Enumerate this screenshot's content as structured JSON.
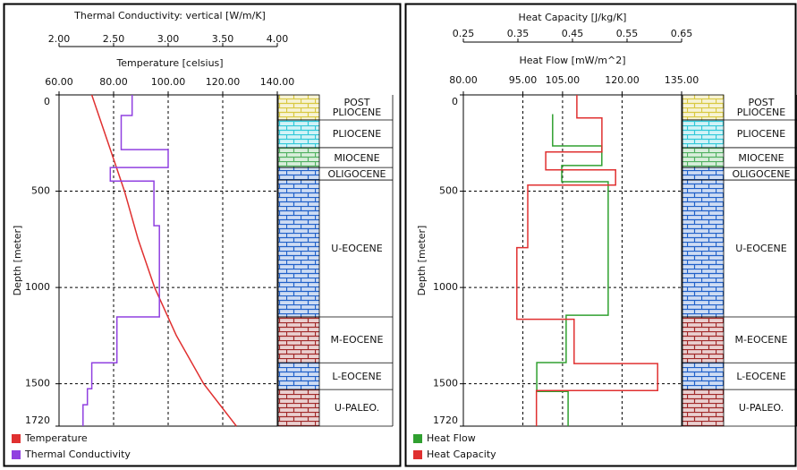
{
  "chart_data": [
    {
      "type": "line",
      "x2label": "Thermal Conductivity: vertical [W/m/K]",
      "xlabel": "Temperature [celsius]",
      "ylabel": "Depth [meter]",
      "x2lim": [
        2,
        4
      ],
      "x2ticks": [
        {
          "value": 2,
          "label": "2.00"
        },
        {
          "value": 2.5,
          "label": "2.50"
        },
        {
          "value": 3,
          "label": "3.00"
        },
        {
          "value": 3.5,
          "label": "3.50"
        },
        {
          "value": 4,
          "label": "4.00"
        }
      ],
      "xlim": [
        60,
        140
      ],
      "xticks": [
        {
          "value": 60,
          "label": "60.00"
        },
        {
          "value": 80,
          "label": "80.00"
        },
        {
          "value": 100,
          "label": "100.00"
        },
        {
          "value": 120,
          "label": "120.00"
        },
        {
          "value": 140,
          "label": "140.00"
        }
      ],
      "ylim": [
        0,
        1720
      ],
      "yticks": [
        0,
        500,
        1000,
        1500,
        1720
      ],
      "grid": true,
      "series": [
        {
          "name": "Temperature",
          "color": "#e03030",
          "axis": "x",
          "depth": [
            0,
            250,
            500,
            750,
            1000,
            1250,
            1500,
            1720
          ],
          "values": [
            72,
            78,
            84,
            89,
            95,
            103,
            113,
            125
          ]
        },
        {
          "name": "Thermal Conductivity",
          "color": "#9040e0",
          "axis": "x2",
          "depth": [
            0,
            107,
            107,
            284,
            284,
            377,
            377,
            447,
            447,
            679,
            679,
            1153,
            1153,
            1391,
            1391,
            1526,
            1526,
            1609,
            1609,
            1720
          ],
          "values": [
            2.67,
            2.67,
            2.57,
            2.57,
            3.0,
            3.0,
            2.47,
            2.47,
            2.87,
            2.87,
            2.92,
            2.92,
            2.53,
            2.53,
            2.3,
            2.3,
            2.26,
            2.26,
            2.22,
            2.22
          ]
        }
      ],
      "formations": [
        {
          "name": "POST PLIOCENE",
          "top": 0,
          "bottom": 130,
          "color": "#d8c840"
        },
        {
          "name": "PLIOCENE",
          "top": 130,
          "bottom": 274,
          "color": "#30c8d8"
        },
        {
          "name": "MIOCENE",
          "top": 274,
          "bottom": 377,
          "color": "#50b060"
        },
        {
          "name": "OLIGOCENE",
          "top": 377,
          "bottom": 442,
          "color": "#2060c8"
        },
        {
          "name": "U-EOCENE",
          "top": 442,
          "bottom": 1153,
          "color": "#2060c8"
        },
        {
          "name": "M-EOCENE",
          "top": 1153,
          "bottom": 1391,
          "color": "#a02828"
        },
        {
          "name": "L-EOCENE",
          "top": 1391,
          "bottom": 1530,
          "color": "#2060c8"
        },
        {
          "name": "U-PALEO.",
          "top": 1530,
          "bottom": 1720,
          "color": "#a02828"
        }
      ]
    },
    {
      "type": "line",
      "x2label": "Heat Capacity [J/kg/K]",
      "xlabel": "Heat Flow [mW/m^2]",
      "ylabel": "Depth [meter]",
      "x2lim": [
        0.25,
        0.65
      ],
      "x2ticks": [
        0.25,
        0.35,
        0.45,
        0.55,
        0.65
      ],
      "xlim": [
        80,
        135
      ],
      "xticks": [
        {
          "value": 80,
          "label": "80.00"
        },
        {
          "value": 95,
          "label": "95.00"
        },
        {
          "value": 105,
          "label": "105.00"
        },
        {
          "value": 120,
          "label": "120.00"
        },
        {
          "value": 135,
          "label": "135.00"
        }
      ],
      "ylim": [
        0,
        1720
      ],
      "yticks": [
        0,
        500,
        1000,
        1500,
        1720
      ],
      "grid": true,
      "series": [
        {
          "name": "Heat Flow",
          "color": "#30a030",
          "axis": "x",
          "depth": [
            100,
            265,
            265,
            367,
            367,
            451,
            451,
            1144,
            1144,
            1390,
            1390,
            1540,
            1540,
            1720
          ],
          "values": [
            102.5,
            102.5,
            114.9,
            114.9,
            104.8,
            104.8,
            116.5,
            116.5,
            105.9,
            105.9,
            98.5,
            98.5,
            106.4,
            106.4
          ]
        },
        {
          "name": "Heat Capacity",
          "color": "#e03030",
          "axis": "x2",
          "depth": [
            0,
            120,
            120,
            296,
            296,
            389,
            389,
            468,
            468,
            793,
            793,
            1165,
            1165,
            1395,
            1395,
            1535,
            1535,
            1720
          ],
          "values": [
            0.458,
            0.458,
            0.504,
            0.504,
            0.401,
            0.401,
            0.529,
            0.529,
            0.368,
            0.368,
            0.348,
            0.348,
            0.453,
            0.453,
            0.606,
            0.606,
            0.384,
            0.384
          ]
        }
      ],
      "formations": [
        {
          "name": "POST PLIOCENE",
          "top": 0,
          "bottom": 130,
          "color": "#d8c840"
        },
        {
          "name": "PLIOCENE",
          "top": 130,
          "bottom": 274,
          "color": "#30c8d8"
        },
        {
          "name": "MIOCENE",
          "top": 274,
          "bottom": 377,
          "color": "#50b060"
        },
        {
          "name": "OLIGOCENE",
          "top": 377,
          "bottom": 442,
          "color": "#2060c8"
        },
        {
          "name": "U-EOCENE",
          "top": 442,
          "bottom": 1153,
          "color": "#2060c8"
        },
        {
          "name": "M-EOCENE",
          "top": 1153,
          "bottom": 1391,
          "color": "#a02828"
        },
        {
          "name": "L-EOCENE",
          "top": 1391,
          "bottom": 1530,
          "color": "#2060c8"
        },
        {
          "name": "U-PALEO.",
          "top": 1530,
          "bottom": 1720,
          "color": "#a02828"
        }
      ]
    }
  ]
}
